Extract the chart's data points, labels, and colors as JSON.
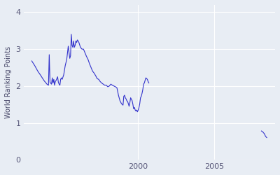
{
  "ylabel": "World Ranking Points",
  "xlim": [
    1992.5,
    2009.0
  ],
  "ylim": [
    0,
    4.2
  ],
  "yticks": [
    0,
    1,
    2,
    3,
    4
  ],
  "xticks": [
    2000,
    2005
  ],
  "grid_color": "#ffffff",
  "bg_color": "#e8edf4",
  "line_color": "#3333cc",
  "line_width": 0.8,
  "segment1": [
    [
      1993.0,
      2.68
    ],
    [
      1993.2,
      2.55
    ],
    [
      1993.4,
      2.4
    ],
    [
      1993.6,
      2.28
    ],
    [
      1993.8,
      2.15
    ],
    [
      1994.0,
      2.05
    ],
    [
      1994.1,
      2.02
    ],
    [
      1994.15,
      2.85
    ],
    [
      1994.2,
      2.1
    ],
    [
      1994.3,
      2.05
    ],
    [
      1994.35,
      2.22
    ],
    [
      1994.4,
      2.08
    ],
    [
      1994.45,
      2.18
    ],
    [
      1994.5,
      2.02
    ],
    [
      1994.55,
      2.12
    ],
    [
      1994.6,
      2.15
    ],
    [
      1994.65,
      2.2
    ],
    [
      1994.7,
      2.25
    ],
    [
      1994.75,
      2.1
    ],
    [
      1994.8,
      2.05
    ],
    [
      1994.85,
      2.02
    ],
    [
      1994.9,
      2.18
    ],
    [
      1994.95,
      2.22
    ],
    [
      1995.0,
      2.18
    ],
    [
      1995.1,
      2.3
    ],
    [
      1995.2,
      2.55
    ],
    [
      1995.3,
      2.72
    ],
    [
      1995.4,
      3.08
    ],
    [
      1995.5,
      2.75
    ],
    [
      1995.55,
      2.82
    ],
    [
      1995.6,
      3.4
    ],
    [
      1995.65,
      3.1
    ],
    [
      1995.7,
      3.05
    ],
    [
      1995.75,
      3.22
    ],
    [
      1995.8,
      3.05
    ],
    [
      1995.85,
      3.1
    ],
    [
      1995.9,
      3.22
    ],
    [
      1995.95,
      3.18
    ],
    [
      1996.0,
      3.25
    ],
    [
      1996.05,
      3.22
    ],
    [
      1996.1,
      3.18
    ],
    [
      1996.2,
      3.05
    ],
    [
      1996.3,
      3.0
    ],
    [
      1996.4,
      3.0
    ],
    [
      1996.5,
      2.9
    ],
    [
      1996.6,
      2.8
    ],
    [
      1996.7,
      2.72
    ],
    [
      1996.8,
      2.6
    ],
    [
      1996.9,
      2.5
    ],
    [
      1997.0,
      2.4
    ],
    [
      1997.1,
      2.35
    ],
    [
      1997.2,
      2.28
    ],
    [
      1997.3,
      2.2
    ],
    [
      1997.4,
      2.18
    ],
    [
      1997.5,
      2.12
    ],
    [
      1997.6,
      2.08
    ],
    [
      1997.7,
      2.05
    ],
    [
      1997.8,
      2.02
    ],
    [
      1997.9,
      2.02
    ],
    [
      1998.0,
      1.98
    ],
    [
      1998.1,
      2.0
    ],
    [
      1998.2,
      2.05
    ],
    [
      1998.3,
      2.02
    ],
    [
      1998.4,
      2.0
    ],
    [
      1998.5,
      1.98
    ],
    [
      1998.6,
      1.95
    ],
    [
      1998.7,
      1.75
    ],
    [
      1998.8,
      1.6
    ],
    [
      1998.9,
      1.52
    ],
    [
      1999.0,
      1.48
    ],
    [
      1999.05,
      1.72
    ],
    [
      1999.1,
      1.75
    ],
    [
      1999.15,
      1.68
    ],
    [
      1999.2,
      1.65
    ],
    [
      1999.25,
      1.6
    ],
    [
      1999.3,
      1.58
    ],
    [
      1999.35,
      1.52
    ],
    [
      1999.4,
      1.45
    ],
    [
      1999.45,
      1.55
    ],
    [
      1999.5,
      1.68
    ],
    [
      1999.6,
      1.6
    ],
    [
      1999.65,
      1.5
    ],
    [
      1999.7,
      1.38
    ],
    [
      1999.75,
      1.42
    ],
    [
      1999.8,
      1.35
    ],
    [
      1999.85,
      1.32
    ],
    [
      1999.9,
      1.35
    ],
    [
      1999.95,
      1.3
    ],
    [
      2000.0,
      1.35
    ],
    [
      2000.05,
      1.42
    ],
    [
      2000.1,
      1.52
    ],
    [
      2000.15,
      1.68
    ],
    [
      2000.2,
      1.72
    ],
    [
      2000.25,
      1.8
    ],
    [
      2000.3,
      1.9
    ],
    [
      2000.35,
      2.05
    ],
    [
      2000.4,
      2.08
    ],
    [
      2000.45,
      2.15
    ],
    [
      2000.5,
      2.22
    ],
    [
      2000.55,
      2.2
    ],
    [
      2000.6,
      2.18
    ],
    [
      2000.65,
      2.12
    ],
    [
      2000.7,
      2.08
    ]
  ],
  "segment2": [
    [
      2008.1,
      0.78
    ],
    [
      2008.2,
      0.75
    ],
    [
      2008.3,
      0.7
    ],
    [
      2008.35,
      0.65
    ],
    [
      2008.4,
      0.62
    ],
    [
      2008.45,
      0.6
    ]
  ]
}
